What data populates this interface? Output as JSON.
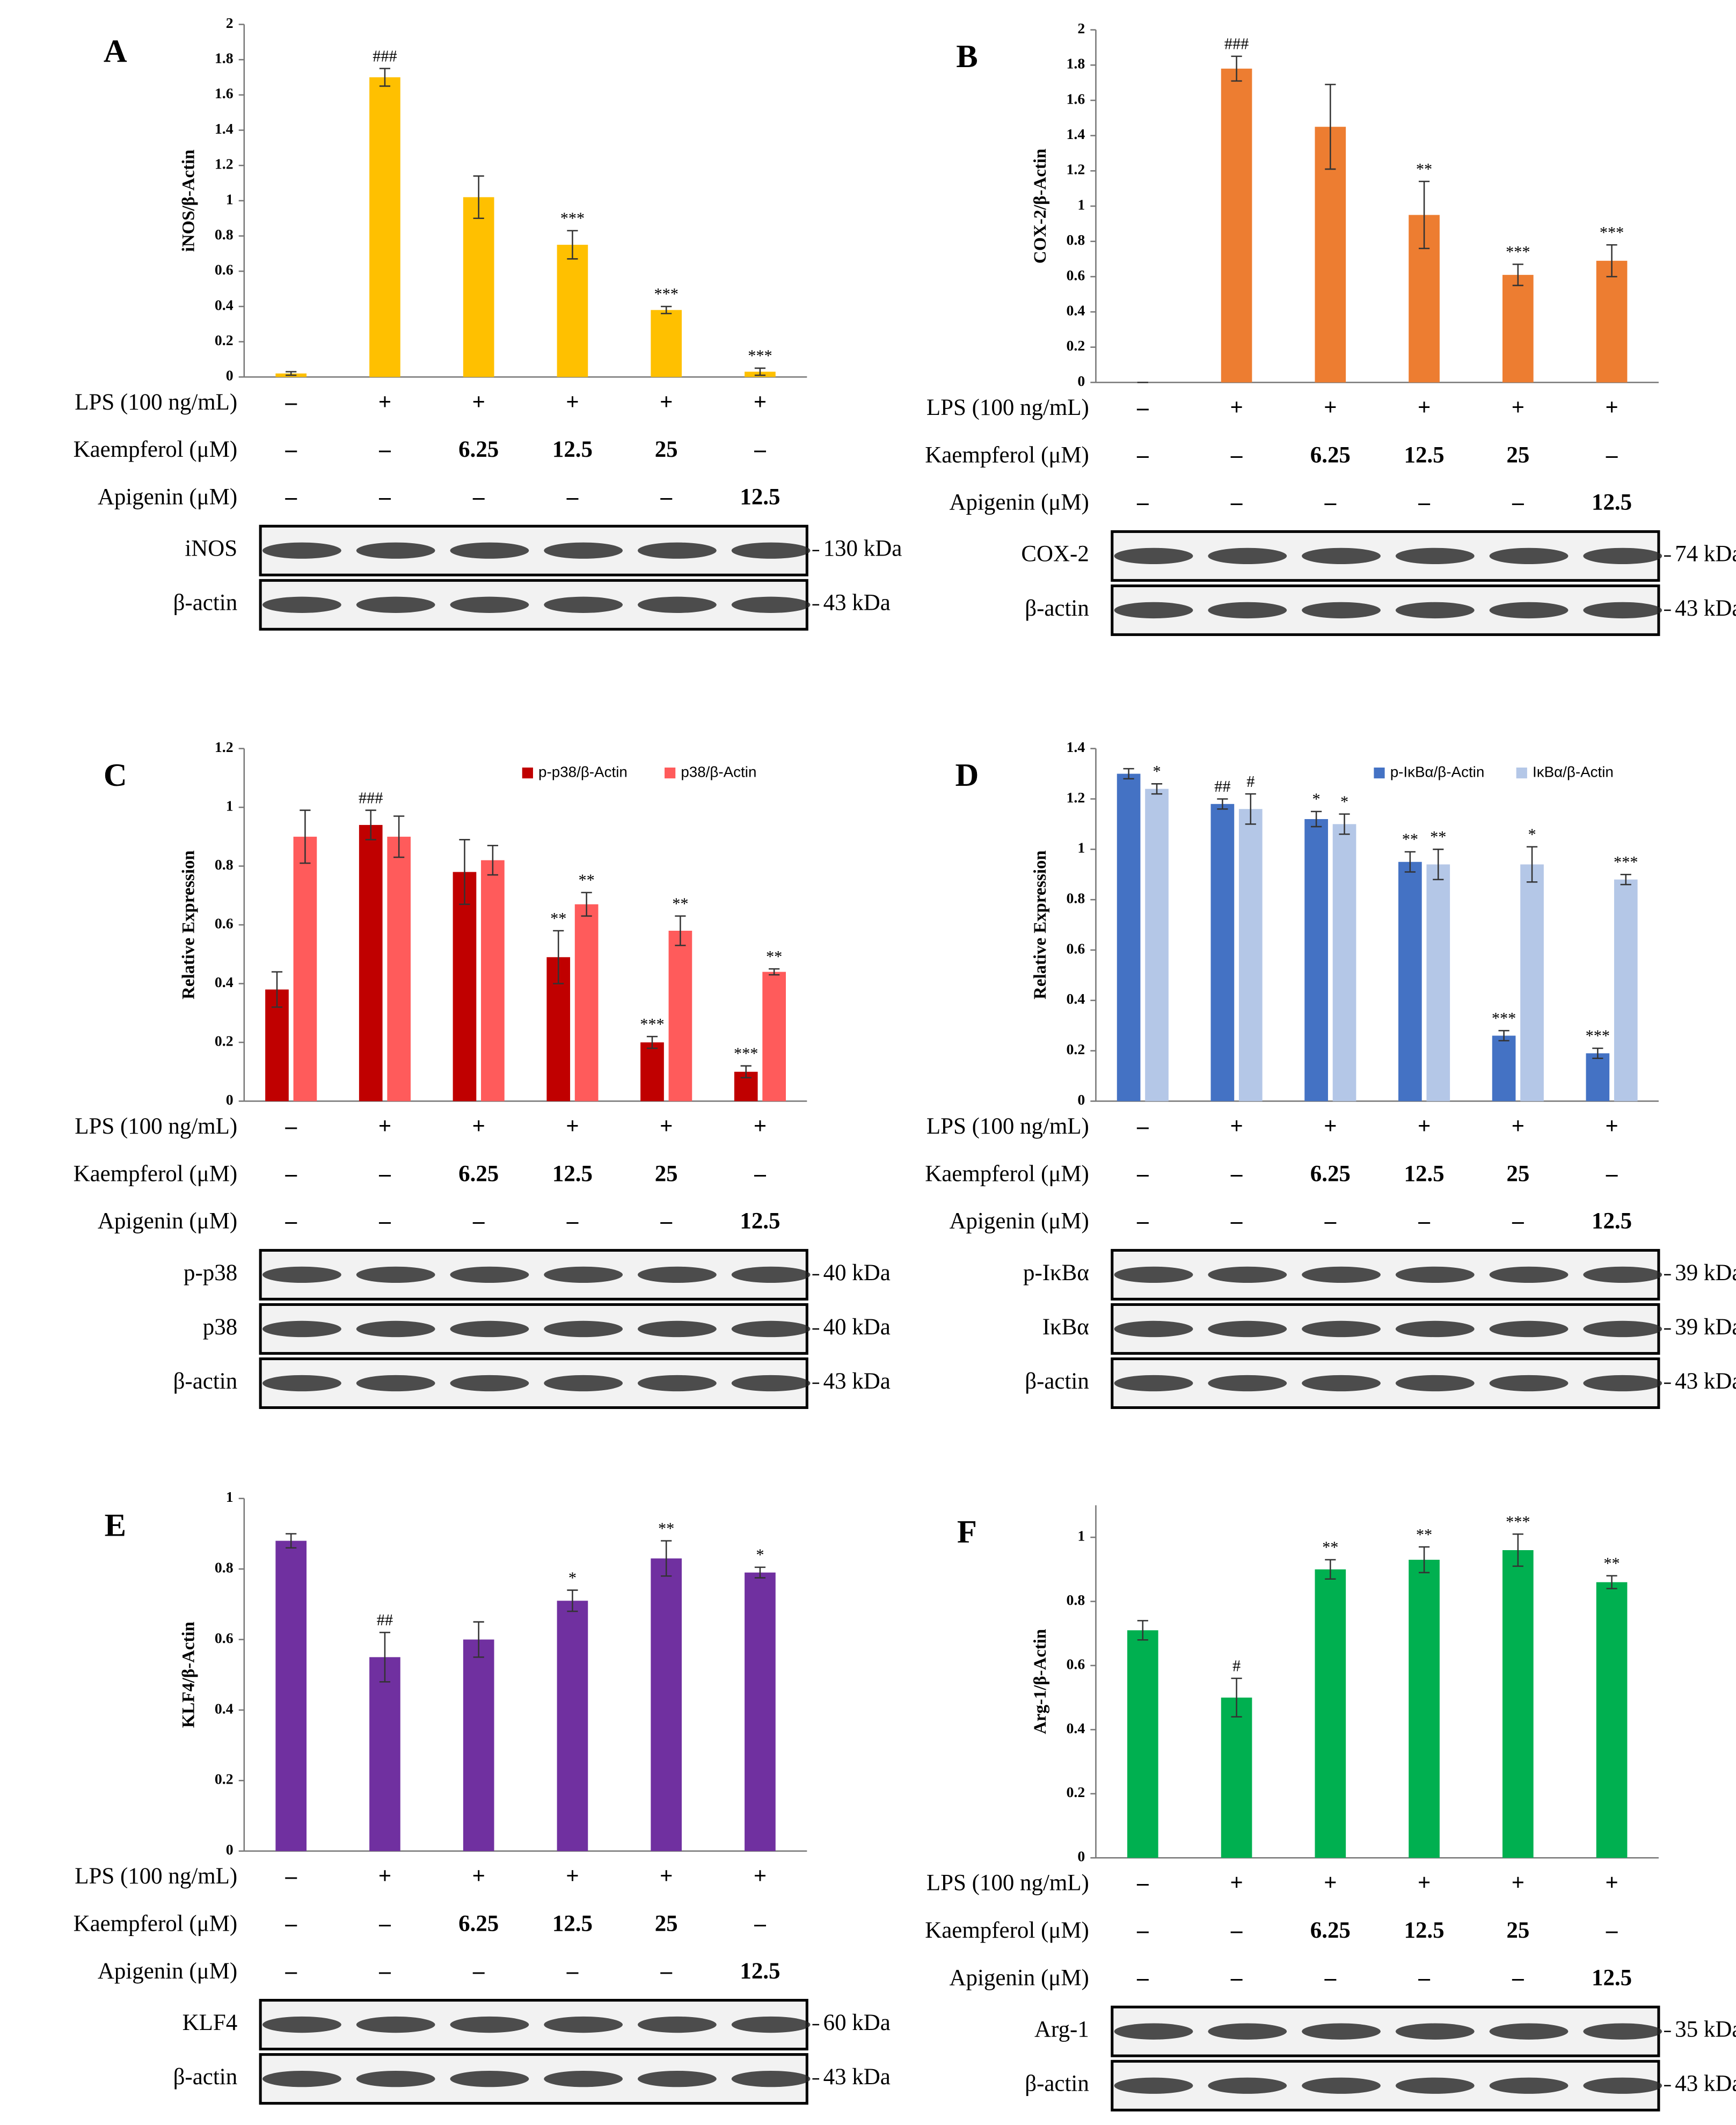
{
  "chart_data": [
    {
      "type": "bar",
      "panel": "A",
      "ylabel": "iNOS/β-Actin",
      "ylim": [
        0,
        2
      ],
      "yticks": [
        0,
        0.2,
        0.4,
        0.6,
        0.8,
        1,
        1.2,
        1.4,
        1.6,
        1.8,
        2
      ],
      "color": "#ffc000",
      "values": [
        0.02,
        1.7,
        1.02,
        0.75,
        0.38,
        0.03
      ],
      "errors": [
        0.01,
        0.05,
        0.12,
        0.08,
        0.02,
        0.02
      ],
      "annotations": [
        null,
        "###",
        null,
        "***",
        "***",
        "***"
      ],
      "conditions": [
        {
          "label": "LPS (100 ng/mL)",
          "values": [
            "–",
            "+",
            "+",
            "+",
            "+",
            "+"
          ]
        },
        {
          "label": "Kaempferol (μM)",
          "values": [
            "–",
            "–",
            "6.25",
            "12.5",
            "25",
            "–"
          ]
        },
        {
          "label": "Apigenin (μM)",
          "values": [
            "–",
            "–",
            "–",
            "–",
            "–",
            "12.5"
          ]
        }
      ],
      "blots": [
        {
          "label": "iNOS",
          "kda": "130 kDa"
        },
        {
          "label": "β-actin",
          "kda": "43 kDa"
        }
      ]
    },
    {
      "type": "bar",
      "panel": "B",
      "ylabel": "COX-2/β-Actin",
      "ylim": [
        0,
        2
      ],
      "yticks": [
        0,
        0.2,
        0.4,
        0.6,
        0.8,
        1,
        1.2,
        1.4,
        1.6,
        1.8,
        2
      ],
      "color": "#ed7d31",
      "values": [
        0,
        1.78,
        1.45,
        0.95,
        0.61,
        0.69
      ],
      "errors": [
        0,
        0.07,
        0.24,
        0.19,
        0.06,
        0.09
      ],
      "annotations": [
        null,
        "###",
        null,
        "**",
        "***",
        "***"
      ],
      "conditions": [
        {
          "label": "LPS (100 ng/mL)",
          "values": [
            "–",
            "+",
            "+",
            "+",
            "+",
            "+"
          ]
        },
        {
          "label": "Kaempferol (μM)",
          "values": [
            "–",
            "–",
            "6.25",
            "12.5",
            "25",
            "–"
          ]
        },
        {
          "label": "Apigenin (μM)",
          "values": [
            "–",
            "–",
            "–",
            "–",
            "–",
            "12.5"
          ]
        }
      ],
      "blots": [
        {
          "label": "COX-2",
          "kda": "74 kDa"
        },
        {
          "label": "β-actin",
          "kda": "43 kDa"
        }
      ]
    },
    {
      "type": "bar",
      "panel": "C",
      "ylabel": "Relative Expression",
      "ylim": [
        0,
        1.2
      ],
      "yticks": [
        0,
        0.2,
        0.4,
        0.6,
        0.8,
        1,
        1.2
      ],
      "series": [
        {
          "name": "p-p38/β-Actin",
          "color": "#c00000",
          "values": [
            0.38,
            0.94,
            0.78,
            0.49,
            0.2,
            0.1
          ],
          "errors": [
            0.06,
            0.05,
            0.11,
            0.09,
            0.02,
            0.02
          ],
          "annotations": [
            null,
            "###",
            null,
            "**",
            "***",
            "***"
          ]
        },
        {
          "name": "p38/β-Actin",
          "color": "#ff5b5b",
          "values": [
            0.9,
            0.9,
            0.82,
            0.67,
            0.58,
            0.44
          ],
          "errors": [
            0.09,
            0.07,
            0.05,
            0.04,
            0.05,
            0.01
          ],
          "annotations": [
            null,
            null,
            null,
            "**",
            "**",
            "**"
          ]
        }
      ],
      "conditions": [
        {
          "label": "LPS (100 ng/mL)",
          "values": [
            "–",
            "+",
            "+",
            "+",
            "+",
            "+"
          ]
        },
        {
          "label": "Kaempferol (μM)",
          "values": [
            "–",
            "–",
            "6.25",
            "12.5",
            "25",
            "–"
          ]
        },
        {
          "label": "Apigenin (μM)",
          "values": [
            "–",
            "–",
            "–",
            "–",
            "–",
            "12.5"
          ]
        }
      ],
      "blots": [
        {
          "label": "p-p38",
          "kda": "40 kDa"
        },
        {
          "label": "p38",
          "kda": "40 kDa"
        },
        {
          "label": "β-actin",
          "kda": "43 kDa"
        }
      ]
    },
    {
      "type": "bar",
      "panel": "D",
      "ylabel": "Relative Expression",
      "ylim": [
        0,
        1.4
      ],
      "yticks": [
        0,
        0.2,
        0.4,
        0.6,
        0.8,
        1,
        1.2,
        1.4
      ],
      "series": [
        {
          "name": "p-IκBα/β-Actin",
          "color": "#4472c4",
          "values": [
            1.3,
            1.18,
            1.12,
            0.95,
            0.26,
            0.19
          ],
          "errors": [
            0.02,
            0.02,
            0.03,
            0.04,
            0.02,
            0.02
          ],
          "annotations": [
            null,
            "##",
            "*",
            "**",
            "***",
            "***"
          ]
        },
        {
          "name": "IκBα/β-Actin",
          "color": "#b4c7e7",
          "values": [
            1.24,
            1.16,
            1.1,
            0.94,
            0.94,
            0.88
          ],
          "errors": [
            0.02,
            0.06,
            0.04,
            0.06,
            0.07,
            0.02
          ],
          "annotations": [
            "*",
            "#",
            "*",
            "**",
            "*",
            "***"
          ]
        }
      ],
      "conditions": [
        {
          "label": "LPS (100 ng/mL)",
          "values": [
            "–",
            "+",
            "+",
            "+",
            "+",
            "+"
          ]
        },
        {
          "label": "Kaempferol (μM)",
          "values": [
            "–",
            "–",
            "6.25",
            "12.5",
            "25",
            "–"
          ]
        },
        {
          "label": "Apigenin (μM)",
          "values": [
            "–",
            "–",
            "–",
            "–",
            "–",
            "12.5"
          ]
        }
      ],
      "blots": [
        {
          "label": "p-IκBα",
          "kda": "39 kDa"
        },
        {
          "label": "IκBα",
          "kda": "39 kDa"
        },
        {
          "label": "β-actin",
          "kda": "43 kDa"
        }
      ]
    },
    {
      "type": "bar",
      "panel": "E",
      "ylabel": "KLF4/β-Actin",
      "ylim": [
        0,
        1
      ],
      "yticks": [
        0,
        0.2,
        0.4,
        0.6,
        0.8,
        1
      ],
      "color": "#7030a0",
      "values": [
        0.88,
        0.55,
        0.6,
        0.71,
        0.83,
        0.79
      ],
      "errors": [
        0.02,
        0.07,
        0.05,
        0.03,
        0.05,
        0.015
      ],
      "annotations": [
        null,
        "##",
        null,
        "*",
        "**",
        "*"
      ],
      "conditions": [
        {
          "label": "LPS (100 ng/mL)",
          "values": [
            "–",
            "+",
            "+",
            "+",
            "+",
            "+"
          ]
        },
        {
          "label": "Kaempferol (μM)",
          "values": [
            "–",
            "–",
            "6.25",
            "12.5",
            "25",
            "–"
          ]
        },
        {
          "label": "Apigenin (μM)",
          "values": [
            "–",
            "–",
            "–",
            "–",
            "–",
            "12.5"
          ]
        }
      ],
      "blots": [
        {
          "label": "KLF4",
          "kda": "60 kDa"
        },
        {
          "label": "β-actin",
          "kda": "43 kDa"
        }
      ]
    },
    {
      "type": "bar",
      "panel": "F",
      "ylabel": "Arg-1/β-Actin",
      "ylim": [
        0,
        1.1
      ],
      "yticks": [
        0,
        0.2,
        0.4,
        0.6,
        0.8,
        1
      ],
      "color": "#00b050",
      "values": [
        0.71,
        0.5,
        0.9,
        0.93,
        0.96,
        0.86
      ],
      "errors": [
        0.03,
        0.06,
        0.03,
        0.04,
        0.05,
        0.02
      ],
      "annotations": [
        null,
        "#",
        "**",
        "**",
        "***",
        "**"
      ],
      "conditions": [
        {
          "label": "LPS (100 ng/mL)",
          "values": [
            "–",
            "+",
            "+",
            "+",
            "+",
            "+"
          ]
        },
        {
          "label": "Kaempferol (μM)",
          "values": [
            "–",
            "–",
            "6.25",
            "12.5",
            "25",
            "–"
          ]
        },
        {
          "label": "Apigenin (μM)",
          "values": [
            "–",
            "–",
            "–",
            "–",
            "–",
            "12.5"
          ]
        }
      ],
      "blots": [
        {
          "label": "Arg-1",
          "kda": "35 kDa"
        },
        {
          "label": "β-actin",
          "kda": "43 kDa"
        }
      ]
    }
  ]
}
